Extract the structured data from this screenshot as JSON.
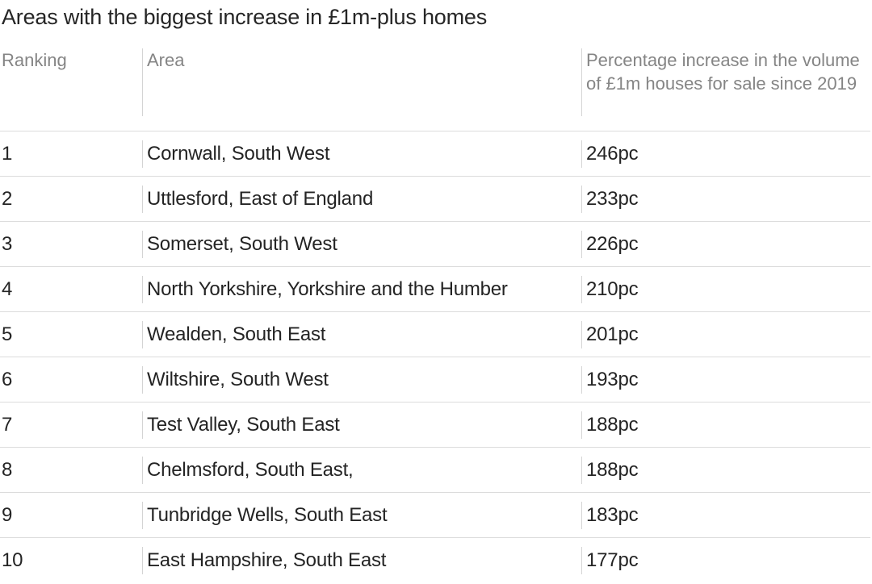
{
  "title": "Areas with the biggest increase in £1m-plus homes",
  "table": {
    "headers": {
      "ranking": "Ranking",
      "area": "Area",
      "percentage": "Percentage increase in the volume of £1m houses for sale since 2019"
    },
    "rows": [
      {
        "rank": "1",
        "area": "Cornwall, South West",
        "pct": "246pc"
      },
      {
        "rank": "2",
        "area": "Uttlesford, East of England",
        "pct": "233pc"
      },
      {
        "rank": "3",
        "area": "Somerset, South West",
        "pct": "226pc"
      },
      {
        "rank": "4",
        "area": "North Yorkshire, Yorkshire and the Humber",
        "pct": "210pc"
      },
      {
        "rank": "5",
        "area": "Wealden, South East",
        "pct": "201pc"
      },
      {
        "rank": "6",
        "area": "Wiltshire, South West",
        "pct": "193pc"
      },
      {
        "rank": "7",
        "area": "Test Valley, South East",
        "pct": "188pc"
      },
      {
        "rank": "8",
        "area": "Chelmsford, South East,",
        "pct": "188pc"
      },
      {
        "rank": "9",
        "area": "Tunbridge Wells, South East",
        "pct": "183pc"
      },
      {
        "rank": "10",
        "area": "East Hampshire, South East",
        "pct": "177pc"
      }
    ]
  }
}
